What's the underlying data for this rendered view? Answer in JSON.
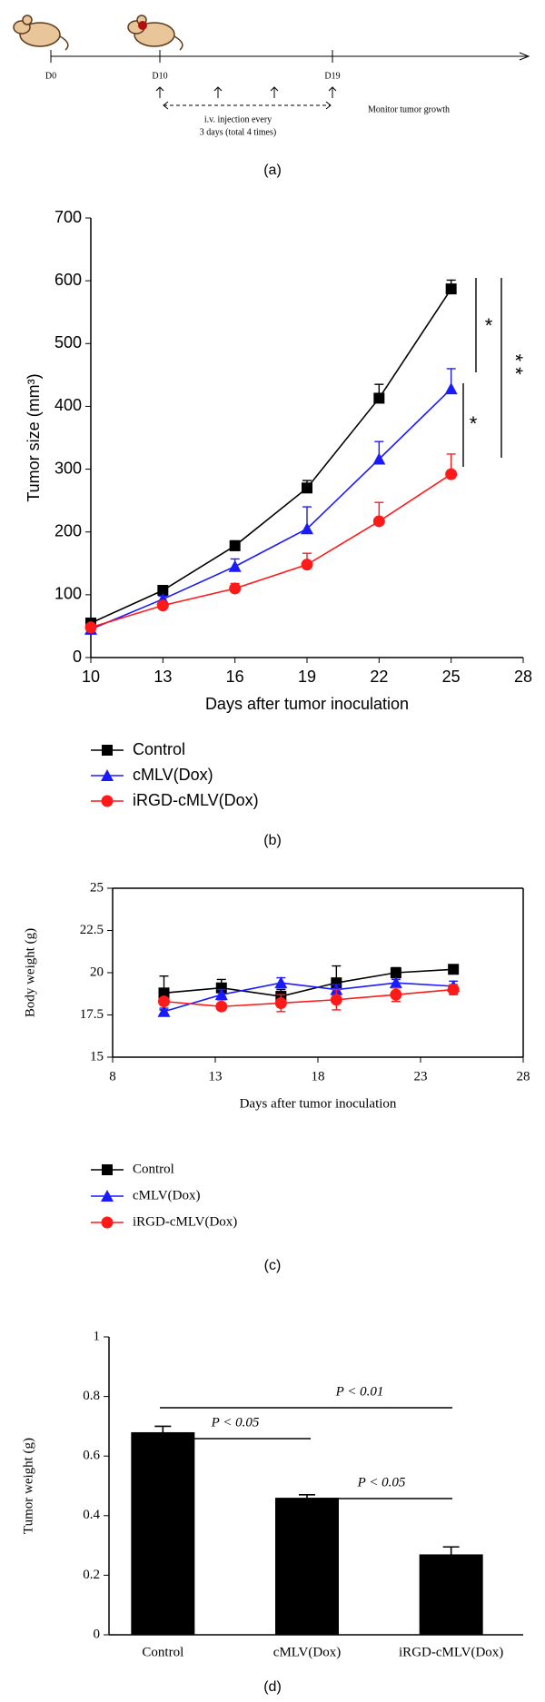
{
  "timeline": {
    "labels": [
      "D0",
      "D10",
      "D19"
    ],
    "injection": [
      "i.v. injection every",
      "3 days (total 4 times)"
    ],
    "monitor": "Monitor tumor growth"
  },
  "captions": [
    "(a)",
    "(b)",
    "(c)",
    "(d)"
  ],
  "chart_data": [
    {
      "type": "line",
      "xlabel": "Days after tumor inoculation",
      "ylabel": "Tumor size (mm³)",
      "x": [
        10,
        13,
        16,
        19,
        22,
        25
      ],
      "xlim": [
        10,
        28
      ],
      "xticks": [
        10,
        13,
        16,
        19,
        22,
        25,
        28
      ],
      "ylim": [
        0,
        700
      ],
      "yticks": [
        0,
        100,
        200,
        300,
        400,
        500,
        600,
        700
      ],
      "series": [
        {
          "name": "Control",
          "color": "#000000",
          "marker": "square",
          "values": [
            55,
            107,
            178,
            270,
            413,
            587
          ],
          "errors": [
            5,
            5,
            8,
            12,
            22,
            14
          ]
        },
        {
          "name": "cMLV(Dox)",
          "color": "#1a1aff",
          "marker": "triangle",
          "values": [
            45,
            93,
            145,
            205,
            316,
            428
          ],
          "errors": [
            5,
            5,
            12,
            35,
            28,
            32
          ]
        },
        {
          "name": "iRGD-cMLV(Dox)",
          "color": "#ff1a1a",
          "marker": "circle",
          "values": [
            48,
            83,
            110,
            148,
            217,
            292
          ],
          "errors": [
            5,
            5,
            8,
            18,
            30,
            32
          ]
        }
      ],
      "annotations": [
        "*",
        "*",
        "**"
      ]
    },
    {
      "type": "line",
      "xlabel": "Days after tumor inoculation",
      "ylabel": "Body weight (g)",
      "x": [
        10.5,
        13.3,
        16.2,
        18.9,
        21.8,
        24.6
      ],
      "xlim": [
        8,
        28
      ],
      "xticks": [
        8,
        13,
        18,
        23,
        28
      ],
      "ylim": [
        15,
        25
      ],
      "yticks": [
        15,
        17.5,
        20,
        22.5,
        25
      ],
      "series": [
        {
          "name": "Control",
          "color": "#000000",
          "marker": "square",
          "values": [
            18.8,
            19.1,
            18.6,
            19.4,
            20.0,
            20.2
          ],
          "errors": [
            1.0,
            0.5,
            0.4,
            1.0,
            0.3,
            0.2
          ]
        },
        {
          "name": "cMLV(Dox)",
          "color": "#1a1aff",
          "marker": "triangle",
          "values": [
            17.7,
            18.7,
            19.4,
            19.0,
            19.4,
            19.2
          ],
          "errors": [
            0.2,
            0.3,
            0.3,
            0.3,
            0.2,
            0.3
          ]
        },
        {
          "name": "iRGD-cMLV(Dox)",
          "color": "#ff1a1a",
          "marker": "circle",
          "values": [
            18.3,
            18.0,
            18.2,
            18.4,
            18.7,
            19.0
          ],
          "errors": [
            0.2,
            0.2,
            0.5,
            0.6,
            0.4,
            0.3
          ]
        }
      ]
    },
    {
      "type": "bar",
      "ylabel": "Tumor weight (g)",
      "categories": [
        "Control",
        "cMLV(Dox)",
        "iRGD-cMLV(Dox)"
      ],
      "values": [
        0.68,
        0.46,
        0.27
      ],
      "errors": [
        0.02,
        0.01,
        0.025
      ],
      "color": "#000000",
      "ylim": [
        0,
        1
      ],
      "yticks": [
        0,
        0.2,
        0.4,
        0.6,
        0.8,
        1
      ],
      "annotations": [
        "P < 0.05",
        "P < 0.01",
        "P < 0.05"
      ]
    }
  ]
}
